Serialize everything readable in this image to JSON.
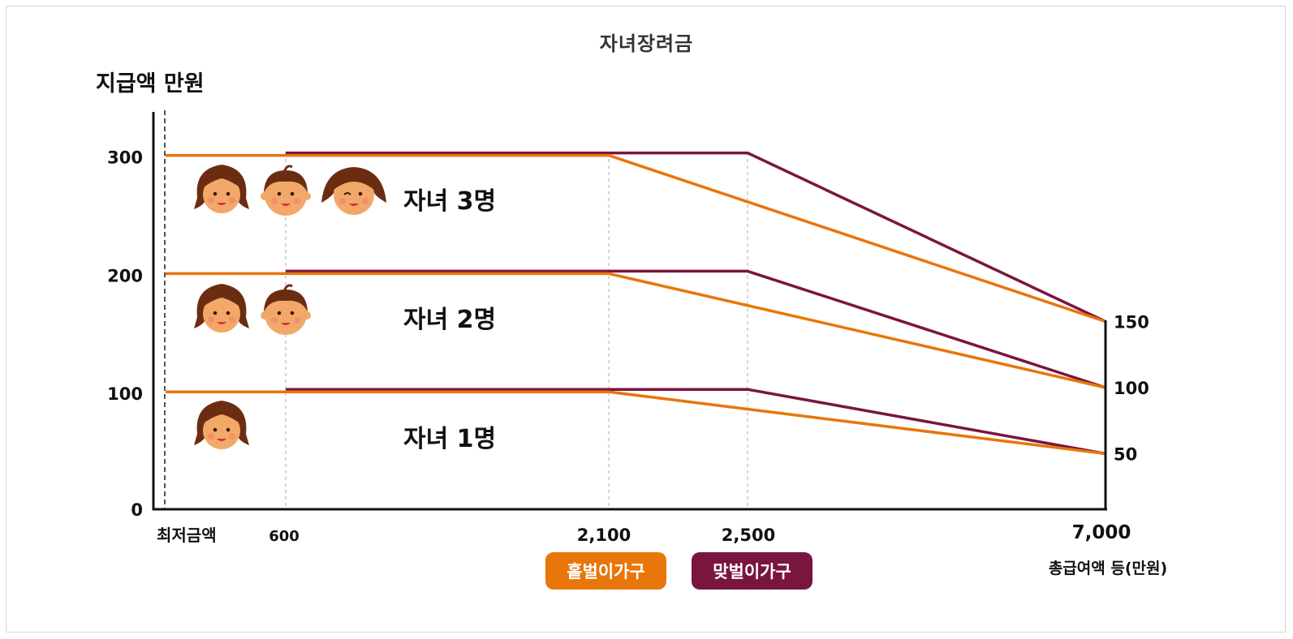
{
  "title": "자녀장려금",
  "chart_data": {
    "type": "line",
    "title": "자녀장려금",
    "ylabel": "지급액 만원",
    "xlabel": "총급여액 등(만원)",
    "x_ticks": [
      "최저금액",
      "600",
      "2,100",
      "2,500",
      "7,000"
    ],
    "y_ticks": [
      "0",
      "100",
      "200",
      "300"
    ],
    "right_ticks": [
      "150",
      "100",
      "50"
    ],
    "groups": [
      {
        "label": "자녀 1명",
        "children": 1,
        "max": 100,
        "end": 50
      },
      {
        "label": "자녀 2명",
        "children": 2,
        "max": 200,
        "end": 100
      },
      {
        "label": "자녀 3명",
        "children": 3,
        "max": 300,
        "end": 150
      }
    ],
    "series": [
      {
        "name": "홑벌이가구",
        "color": "#e8760a",
        "plateau_start": 0,
        "plateau_end": 2100,
        "end_x": 7000
      },
      {
        "name": "맞벌이가구",
        "color": "#7a1540",
        "plateau_start": 600,
        "plateau_end": 2500,
        "end_x": 7000
      }
    ]
  },
  "legend": {
    "single": "홑벌이가구",
    "dual": "맞벌이가구",
    "single_color": "#e8760a",
    "dual_color": "#7a1540"
  },
  "icons": [
    "girl-face-icon",
    "boy-face-icon",
    "winking-girl-face-icon"
  ]
}
